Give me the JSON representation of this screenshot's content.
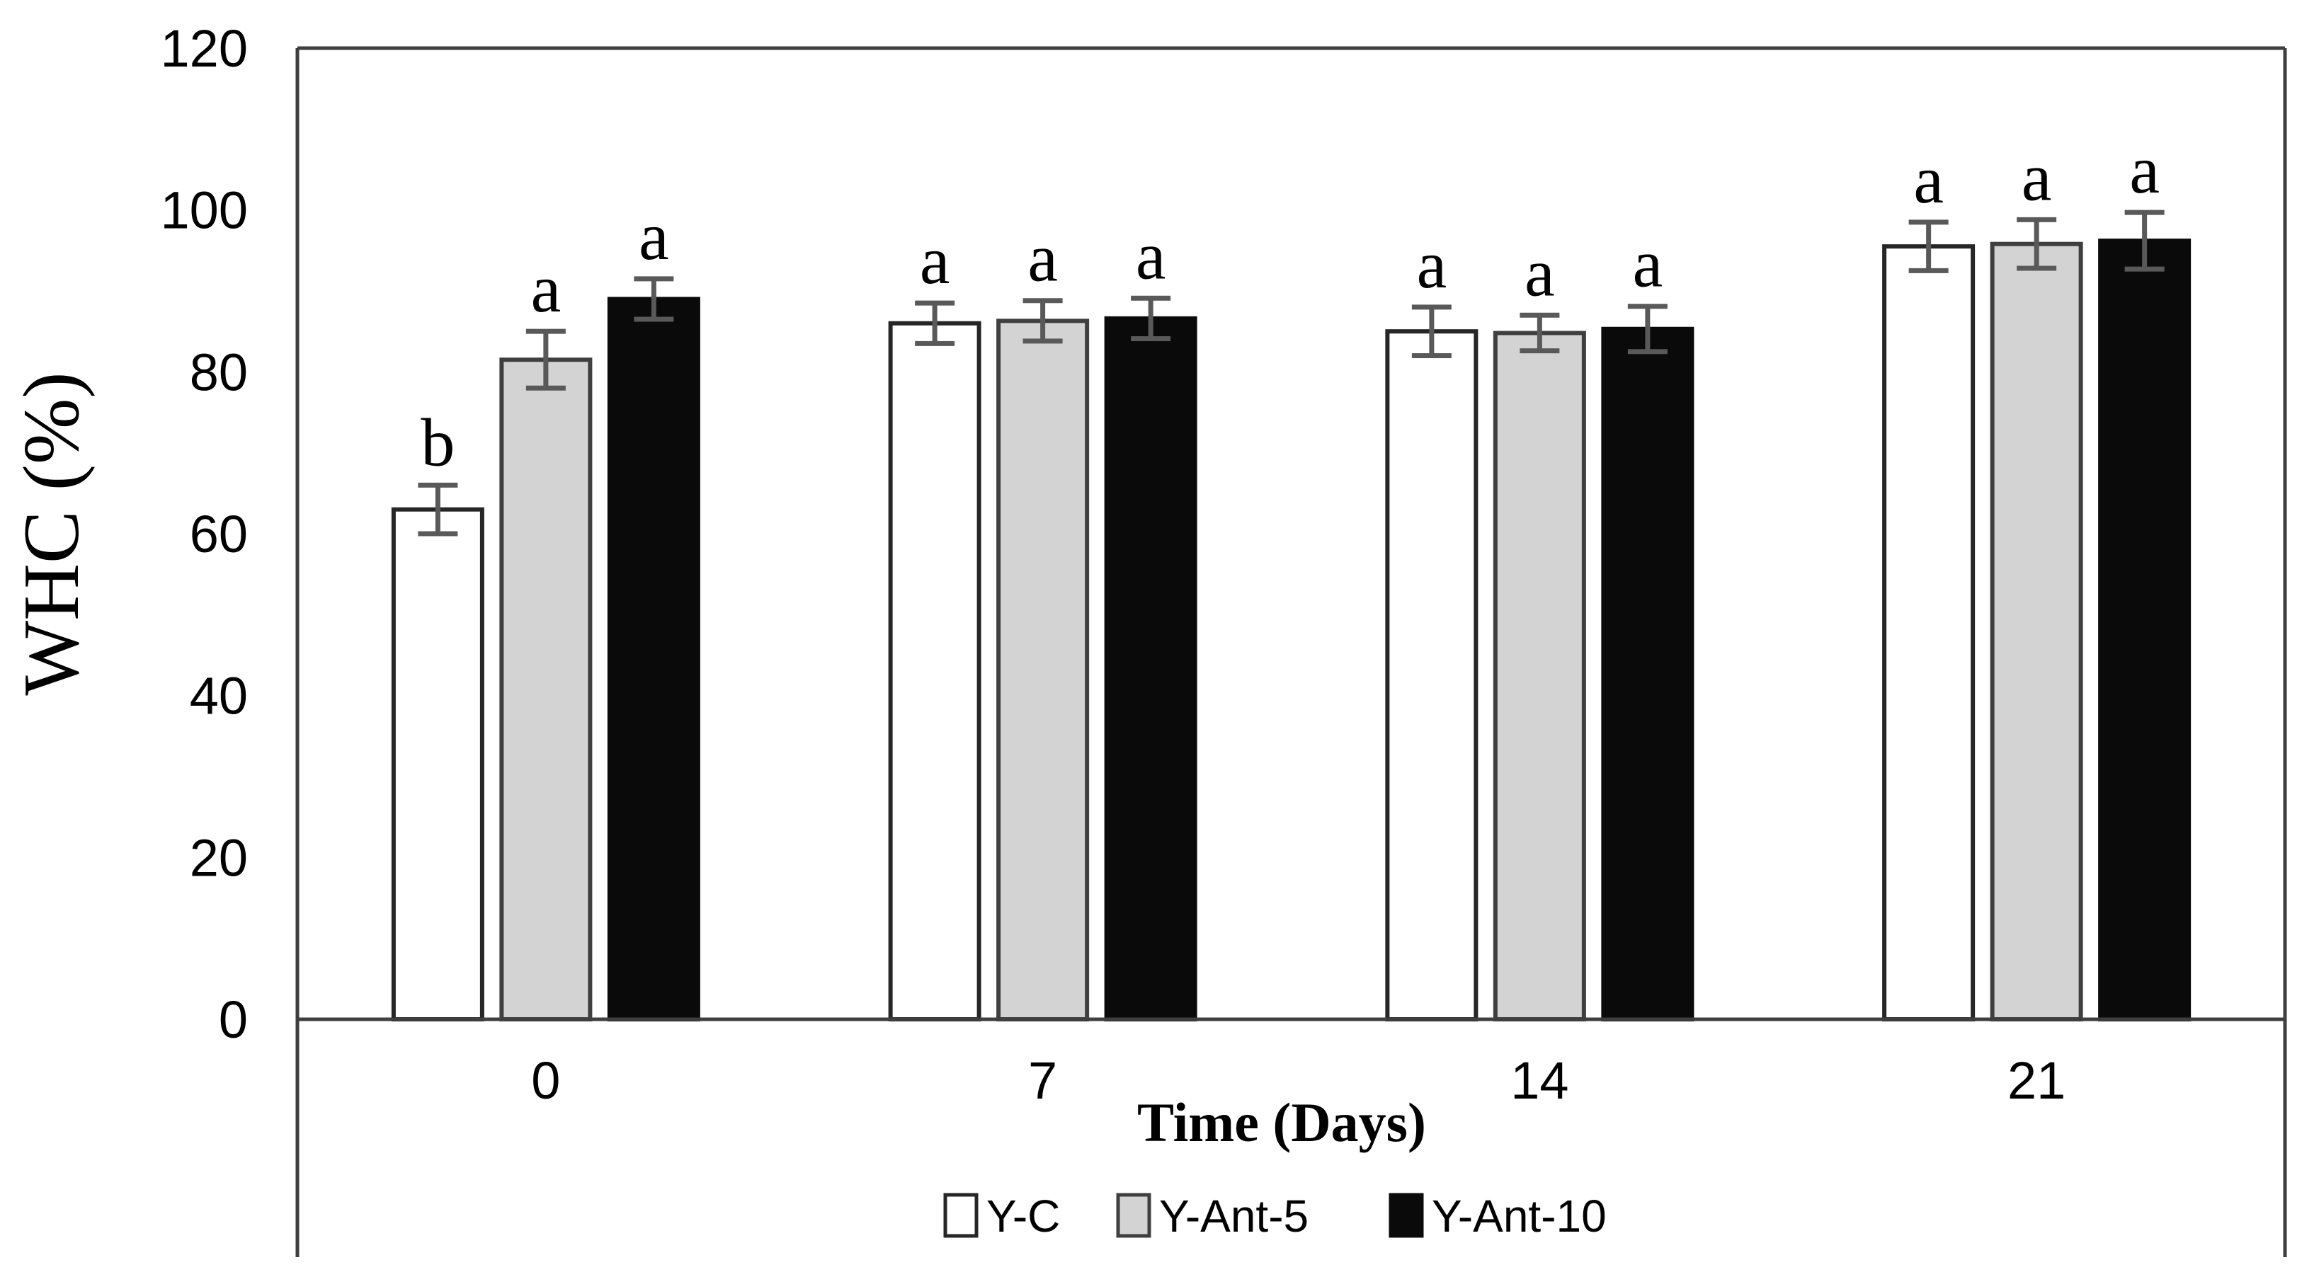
{
  "chart_data": {
    "type": "bar",
    "title": "",
    "xlabel": "Time (Days)",
    "ylabel": "WHC (%)",
    "categories": [
      "0",
      "7",
      "14",
      "21"
    ],
    "ylim": [
      0,
      120
    ],
    "yticks": [
      0,
      20,
      40,
      60,
      80,
      100,
      120
    ],
    "grid": false,
    "legend_position": "bottom",
    "axis_color": "#3f3f3f",
    "error_bar_color": "#595959",
    "series": [
      {
        "name": "Y-C",
        "fill": "#ffffff",
        "stroke": "#262626",
        "values": [
          63,
          86,
          85,
          95.5
        ],
        "errors": [
          3,
          2.5,
          3,
          3
        ],
        "sig_labels": [
          "b",
          "a",
          "a",
          "a"
        ]
      },
      {
        "name": "Y-Ant-5",
        "fill": "#d3d3d3",
        "stroke": "#3f3f3f",
        "values": [
          81.5,
          86.3,
          84.8,
          95.8
        ],
        "errors": [
          3.5,
          2.5,
          2.2,
          3
        ],
        "sig_labels": [
          "a",
          "a",
          "a",
          "a"
        ]
      },
      {
        "name": "Y-Ant-10",
        "fill": "#0a0a0a",
        "stroke": "#0a0a0a",
        "values": [
          89,
          86.6,
          85.3,
          96.2
        ],
        "errors": [
          2.5,
          2.5,
          2.8,
          3.5
        ],
        "sig_labels": [
          "a",
          "a",
          "a",
          "a"
        ]
      }
    ]
  }
}
